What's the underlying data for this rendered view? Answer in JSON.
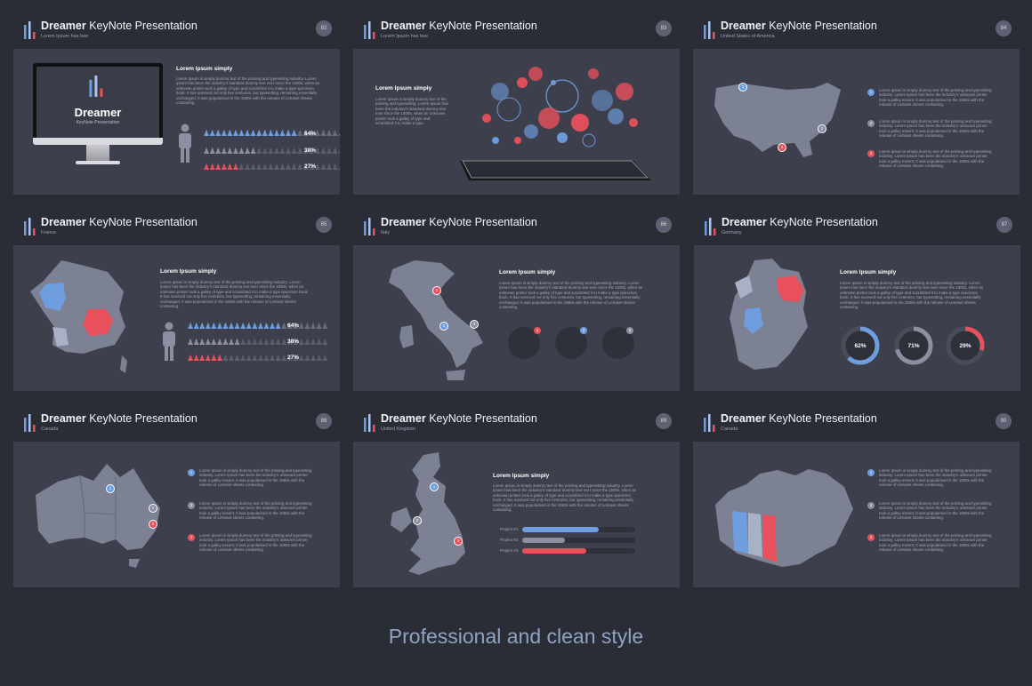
{
  "deck": {
    "title_bold": "Dreamer",
    "title_rest": " KeyNote Presentation",
    "heading": "Lorem Ipsum simply",
    "para_long": "Lorem Ipsum is simply dummy text of the printing and typesetting industry. Lorem Ipsum has been the industry's standard dummy text ever since the 1500s, when an unknown printer took a galley of type and scrambled it to make a type specimen book. It has survived not only five centuries, but typesetting, remaining essentially unchanged. It was popularised in the 1960s with the release of Letraset sheets containing.",
    "para_short": "Lorem Ipsum is simply dummy text of the printing and typesetting. Lorem Ipsum has been the industry's standard dummy text ever since the 1500s, when an unknown printer took a galley of type and scrambled it to make a type.",
    "item_text": "Lorem Ipsum is simply dummy text of the printing and typesetting industry. Lorem Ipsum has been the industry's unknown printer took a galley essent. It was popularised in the 1960s with the release of Letraset sheets containing."
  },
  "slides": [
    {
      "number": "82",
      "subtitle": "Lorem Ipsum has bee",
      "monitor_title": "Dreamer",
      "monitor_sub": "KeyNote Presentation",
      "percents": [
        "64%",
        "38%",
        "27%"
      ]
    },
    {
      "number": "83",
      "subtitle": "Lorem Ipsum has bee"
    },
    {
      "number": "84",
      "subtitle": "United States of America",
      "pins": [
        "1",
        "2",
        "3"
      ]
    },
    {
      "number": "85",
      "subtitle": "France",
      "percents": [
        "64%",
        "38%",
        "27%"
      ]
    },
    {
      "number": "86",
      "subtitle": "Italy",
      "pins": [
        "1",
        "2",
        "3"
      ]
    },
    {
      "number": "87",
      "subtitle": "Germany",
      "donuts": [
        "62%",
        "71%",
        "29%"
      ]
    },
    {
      "number": "88",
      "subtitle": "Canada",
      "pins": [
        "1",
        "2",
        "3"
      ]
    },
    {
      "number": "89",
      "subtitle": "United Kingdom",
      "pins": [
        "1",
        "2",
        "3"
      ],
      "projects": [
        "Project #1",
        "Project #2",
        "Project #3"
      ],
      "project_levels": [
        0.68,
        0.38,
        0.57
      ]
    },
    {
      "number": "90",
      "subtitle": "Canada",
      "pins": [
        "1",
        "2",
        "3"
      ]
    }
  ],
  "tagline": "Professional and clean style",
  "colors": {
    "background": "#2b2d36",
    "panel": "#3d404c",
    "blue": "#6f9ee0",
    "grey": "#8a8fa1",
    "red": "#e8505b"
  }
}
